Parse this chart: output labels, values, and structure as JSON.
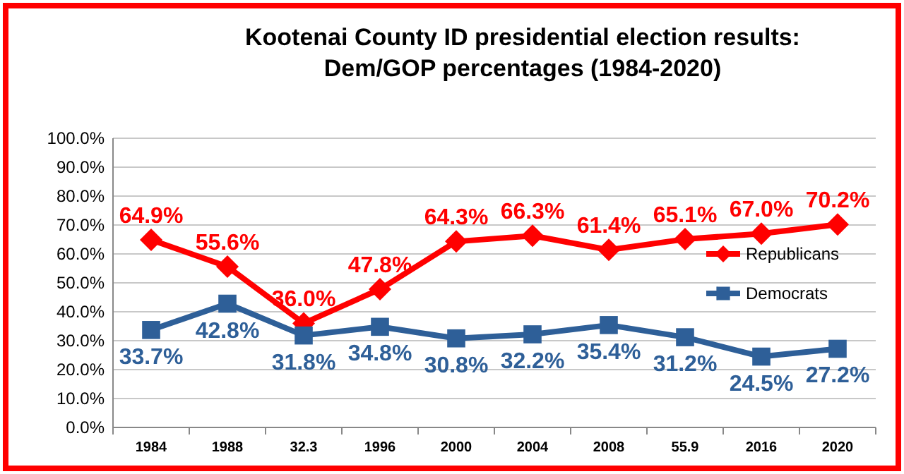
{
  "chart_data": {
    "type": "line",
    "title": "Kootenai County ID presidential election results:\nDem/GOP percentages (1984-2020)",
    "categories": [
      "1984",
      "1988",
      "32.3",
      "1996",
      "2000",
      "2004",
      "2008",
      "55.9",
      "2016",
      "2020"
    ],
    "series": [
      {
        "name": "Republicans",
        "color": "#ff0000",
        "marker": "diamond",
        "values": [
          64.9,
          55.6,
          36.0,
          47.8,
          64.3,
          66.3,
          61.4,
          65.1,
          67.0,
          70.2
        ],
        "value_labels": [
          "64.9%",
          "55.6%",
          "36.0%",
          "47.8%",
          "64.3%",
          "66.3%",
          "61.4%",
          "65.1%",
          "67.0%",
          "70.2%"
        ]
      },
      {
        "name": "Democrats",
        "color": "#2e5f98",
        "marker": "square",
        "values": [
          33.7,
          42.8,
          31.8,
          34.8,
          30.8,
          32.2,
          35.4,
          31.2,
          24.5,
          27.2
        ],
        "value_labels": [
          "33.7%",
          "42.8%",
          "31.8%",
          "34.8%",
          "30.8%",
          "32.2%",
          "35.4%",
          "31.2%",
          "24.5%",
          "27.2%"
        ]
      }
    ],
    "ylim": [
      0,
      100
    ],
    "yticks": [
      {
        "value": 0,
        "label": "0.0%"
      },
      {
        "value": 10,
        "label": "10.0%"
      },
      {
        "value": 20,
        "label": "20.0%"
      },
      {
        "value": 30,
        "label": "30.0%"
      },
      {
        "value": 40,
        "label": "40.0%"
      },
      {
        "value": 50,
        "label": "50.0%"
      },
      {
        "value": 60,
        "label": "60.0%"
      },
      {
        "value": 70,
        "label": "70.0%"
      },
      {
        "value": 80,
        "label": "80.0%"
      },
      {
        "value": 90,
        "label": "90.0%"
      },
      {
        "value": 100,
        "label": "100.0%"
      }
    ],
    "grid": "y",
    "legend": "right",
    "line_style": "solid"
  }
}
